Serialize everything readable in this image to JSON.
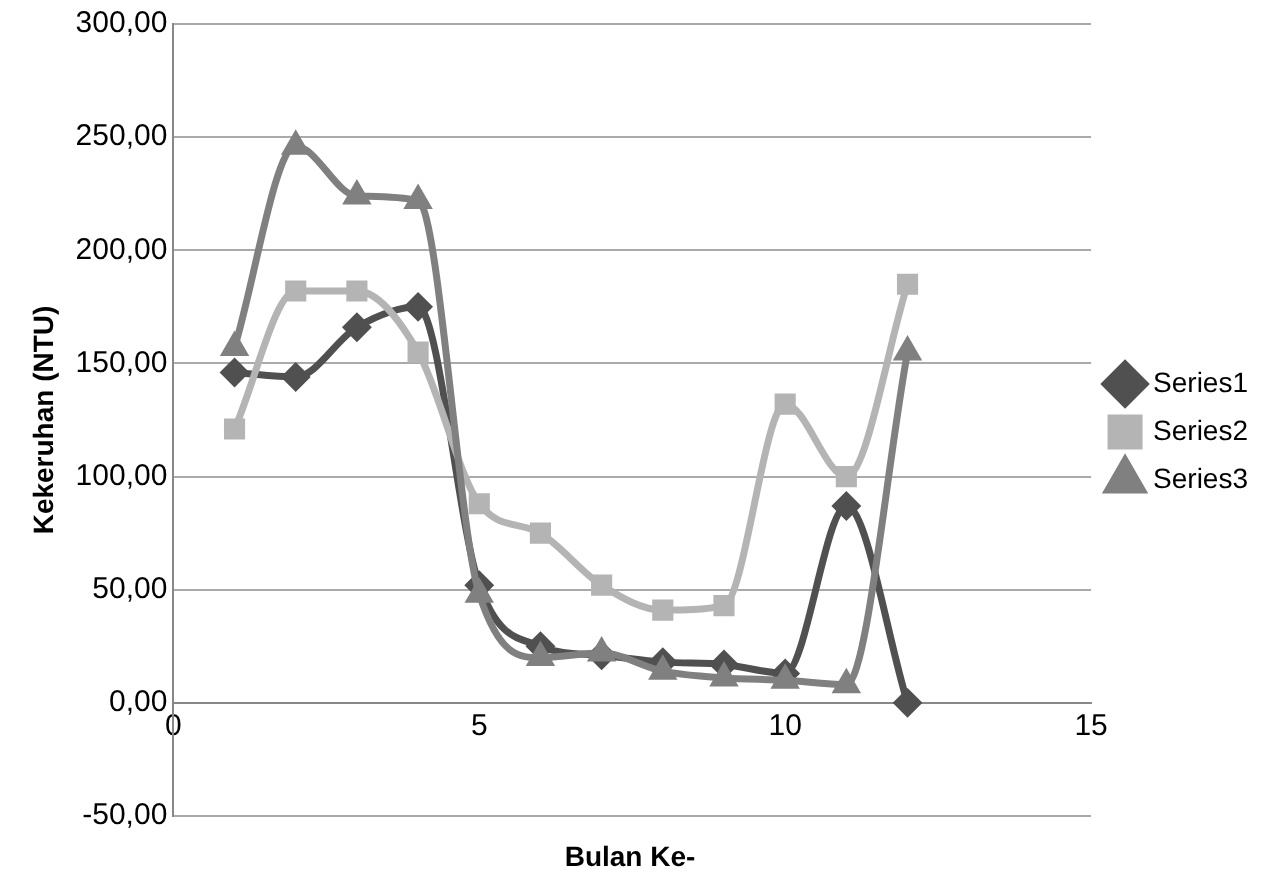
{
  "chart_data": {
    "type": "line",
    "xlabel": "Bulan Ke-",
    "ylabel": "Kekeruhan (NTU)",
    "x": [
      1,
      2,
      3,
      4,
      5,
      6,
      7,
      8,
      9,
      10,
      11,
      12
    ],
    "series": [
      {
        "name": "Series1",
        "color": "#505050",
        "marker": "diamond",
        "values": [
          146,
          144,
          166,
          175,
          52,
          25,
          21,
          18,
          17,
          13,
          87,
          0
        ]
      },
      {
        "name": "Series2",
        "color": "#b4b4b4",
        "marker": "square",
        "values": [
          121,
          182,
          182,
          155,
          88,
          75,
          52,
          41,
          43,
          132,
          100,
          185
        ]
      },
      {
        "name": "Series3",
        "color": "#808080",
        "marker": "triangle",
        "values": [
          157,
          246,
          224,
          222,
          48,
          20,
          22,
          14,
          11,
          10,
          8,
          155
        ]
      }
    ],
    "xlim": [
      0,
      15
    ],
    "xticks": [
      0,
      5,
      10,
      15
    ],
    "ylim": [
      -50,
      300
    ],
    "yticks": [
      {
        "value": -50,
        "label": "-50,00"
      },
      {
        "value": 0,
        "label": "0,00"
      },
      {
        "value": 50,
        "label": "50,00"
      },
      {
        "value": 100,
        "label": "100,00"
      },
      {
        "value": 150,
        "label": "150,00"
      },
      {
        "value": 200,
        "label": "200,00"
      },
      {
        "value": 250,
        "label": "250,00"
      },
      {
        "value": 300,
        "label": "300,00"
      }
    ],
    "grid": "y",
    "legend": "right"
  }
}
